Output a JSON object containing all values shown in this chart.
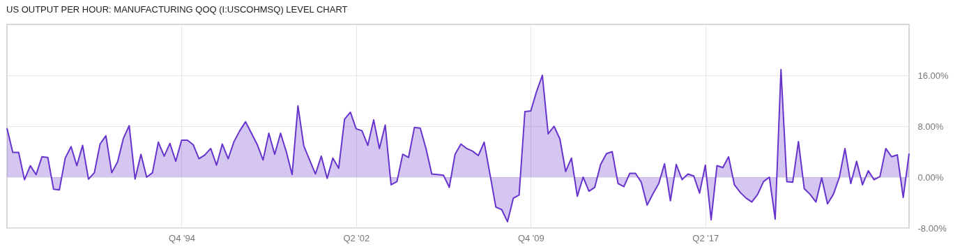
{
  "chart_data": {
    "type": "area",
    "title": "US OUTPUT PER HOUR: MANUFACTURING QOQ (I:USCOHMSQ) LEVEL CHART",
    "x": [
      "1987-04",
      "1987-07",
      "1987-10",
      "1988-01",
      "1988-04",
      "1988-07",
      "1988-10",
      "1989-01",
      "1989-04",
      "1989-07",
      "1989-10",
      "1990-01",
      "1990-04",
      "1990-07",
      "1990-10",
      "1991-01",
      "1991-04",
      "1991-07",
      "1991-10",
      "1992-01",
      "1992-04",
      "1992-07",
      "1992-10",
      "1993-01",
      "1993-04",
      "1993-07",
      "1993-10",
      "1994-01",
      "1994-04",
      "1994-07",
      "1994-10",
      "1995-01",
      "1995-04",
      "1995-07",
      "1995-10",
      "1996-01",
      "1996-04",
      "1996-07",
      "1996-10",
      "1997-01",
      "1997-04",
      "1997-07",
      "1997-10",
      "1998-01",
      "1998-04",
      "1998-07",
      "1998-10",
      "1999-01",
      "1999-04",
      "1999-07",
      "1999-10",
      "2000-01",
      "2000-04",
      "2000-07",
      "2000-10",
      "2001-01",
      "2001-04",
      "2001-07",
      "2001-10",
      "2002-01",
      "2002-04",
      "2002-07",
      "2002-10",
      "2003-01",
      "2003-04",
      "2003-07",
      "2003-10",
      "2004-01",
      "2004-04",
      "2004-07",
      "2004-10",
      "2005-01",
      "2005-04",
      "2005-07",
      "2005-10",
      "2006-01",
      "2006-04",
      "2006-07",
      "2006-10",
      "2007-01",
      "2007-04",
      "2007-07",
      "2007-10",
      "2008-01",
      "2008-04",
      "2008-07",
      "2008-10",
      "2009-01",
      "2009-04",
      "2009-07",
      "2009-10",
      "2010-01",
      "2010-04",
      "2010-07",
      "2010-10",
      "2011-01",
      "2011-04",
      "2011-07",
      "2011-10",
      "2012-01",
      "2012-04",
      "2012-07",
      "2012-10",
      "2013-01",
      "2013-04",
      "2013-07",
      "2013-10",
      "2014-01",
      "2014-04",
      "2014-07",
      "2014-10",
      "2015-01",
      "2015-04",
      "2015-07",
      "2015-10",
      "2016-01",
      "2016-04",
      "2016-07",
      "2016-10",
      "2017-01",
      "2017-04",
      "2017-07",
      "2017-10",
      "2018-01",
      "2018-04",
      "2018-07",
      "2018-10",
      "2019-01",
      "2019-04",
      "2019-07",
      "2019-10",
      "2020-01",
      "2020-04",
      "2020-07",
      "2020-10",
      "2021-01",
      "2021-04",
      "2021-07",
      "2021-10",
      "2022-01",
      "2022-04",
      "2022-07",
      "2022-10",
      "2023-01",
      "2023-04",
      "2023-07",
      "2023-10",
      "2024-01",
      "2024-04",
      "2024-07",
      "2024-10",
      "2025-01",
      "2025-04",
      "2025-07",
      "2025-10",
      "2026-01"
    ],
    "series": [
      {
        "color": "#6633cc",
        "values": [
          7.7,
          3.9,
          3.9,
          -0.4,
          1.8,
          0.4,
          3.2,
          3.1,
          -1.9,
          -2.0,
          3.0,
          4.8,
          1.8,
          5.0,
          -0.3,
          0.7,
          5.2,
          6.5,
          0.7,
          2.4,
          6.1,
          8.1,
          -0.3,
          3.6,
          0.0,
          0.7,
          5.5,
          3.3,
          5.3,
          2.5,
          5.8,
          5.8,
          5.1,
          2.9,
          3.5,
          4.5,
          1.9,
          5.2,
          2.9,
          5.6,
          7.3,
          8.7,
          6.9,
          5.1,
          2.7,
          6.9,
          3.6,
          6.9,
          4.0,
          0.4,
          11.2,
          4.9,
          2.7,
          0.5,
          3.3,
          -0.2,
          3.0,
          1.4,
          9.1,
          10.2,
          7.6,
          7.3,
          5.0,
          9.0,
          4.5,
          8.2,
          -1.2,
          -0.7,
          3.6,
          3.1,
          7.8,
          7.7,
          4.5,
          0.5,
          0.4,
          0.3,
          -1.6,
          3.6,
          5.2,
          4.5,
          4.1,
          3.4,
          5.5,
          0.4,
          -4.7,
          -5.1,
          -7.0,
          -3.3,
          -2.8,
          10.3,
          10.4,
          13.5,
          16.0,
          6.8,
          8.0,
          6.0,
          0.9,
          3.0,
          -3.0,
          0.0,
          -2.2,
          -1.6,
          2.0,
          3.7,
          4.0,
          -1.0,
          -1.5,
          0.6,
          0.6,
          -0.8,
          -4.4,
          -2.6,
          -1.0,
          2.1,
          -3.7,
          2.0,
          -0.4,
          0.5,
          0.2,
          -2.5,
          1.9,
          -6.7,
          1.8,
          1.5,
          3.2,
          -1.2,
          -2.4,
          -3.3,
          -3.9,
          -2.7,
          -0.7,
          0.0,
          -6.6,
          16.9,
          -0.7,
          -0.8,
          5.6,
          -1.8,
          -2.7,
          -3.9,
          -0.1,
          -4.2,
          -2.7,
          -0.1,
          4.5,
          -1.0,
          2.5,
          -1.2,
          1.0,
          -0.4,
          0.1,
          4.5,
          3.2,
          3.5,
          -3.2,
          3.7
        ]
      }
    ],
    "xlim": [
      "1987-04",
      "2026-01"
    ],
    "xticks": [
      {
        "value": "1994-10",
        "label": "Q4 '94"
      },
      {
        "value": "2002-04",
        "label": "Q2 '02"
      },
      {
        "value": "2009-10",
        "label": "Q4 '09"
      },
      {
        "value": "2017-04",
        "label": "Q2 '17"
      }
    ],
    "ylim": [
      -8,
      24
    ],
    "yticks": [
      {
        "value": -8,
        "label": "-8.00%"
      },
      {
        "value": 0,
        "label": "0.00%"
      },
      {
        "value": 8,
        "label": "8.00%"
      },
      {
        "value": 16,
        "label": "16.00%"
      }
    ],
    "grid": true
  }
}
